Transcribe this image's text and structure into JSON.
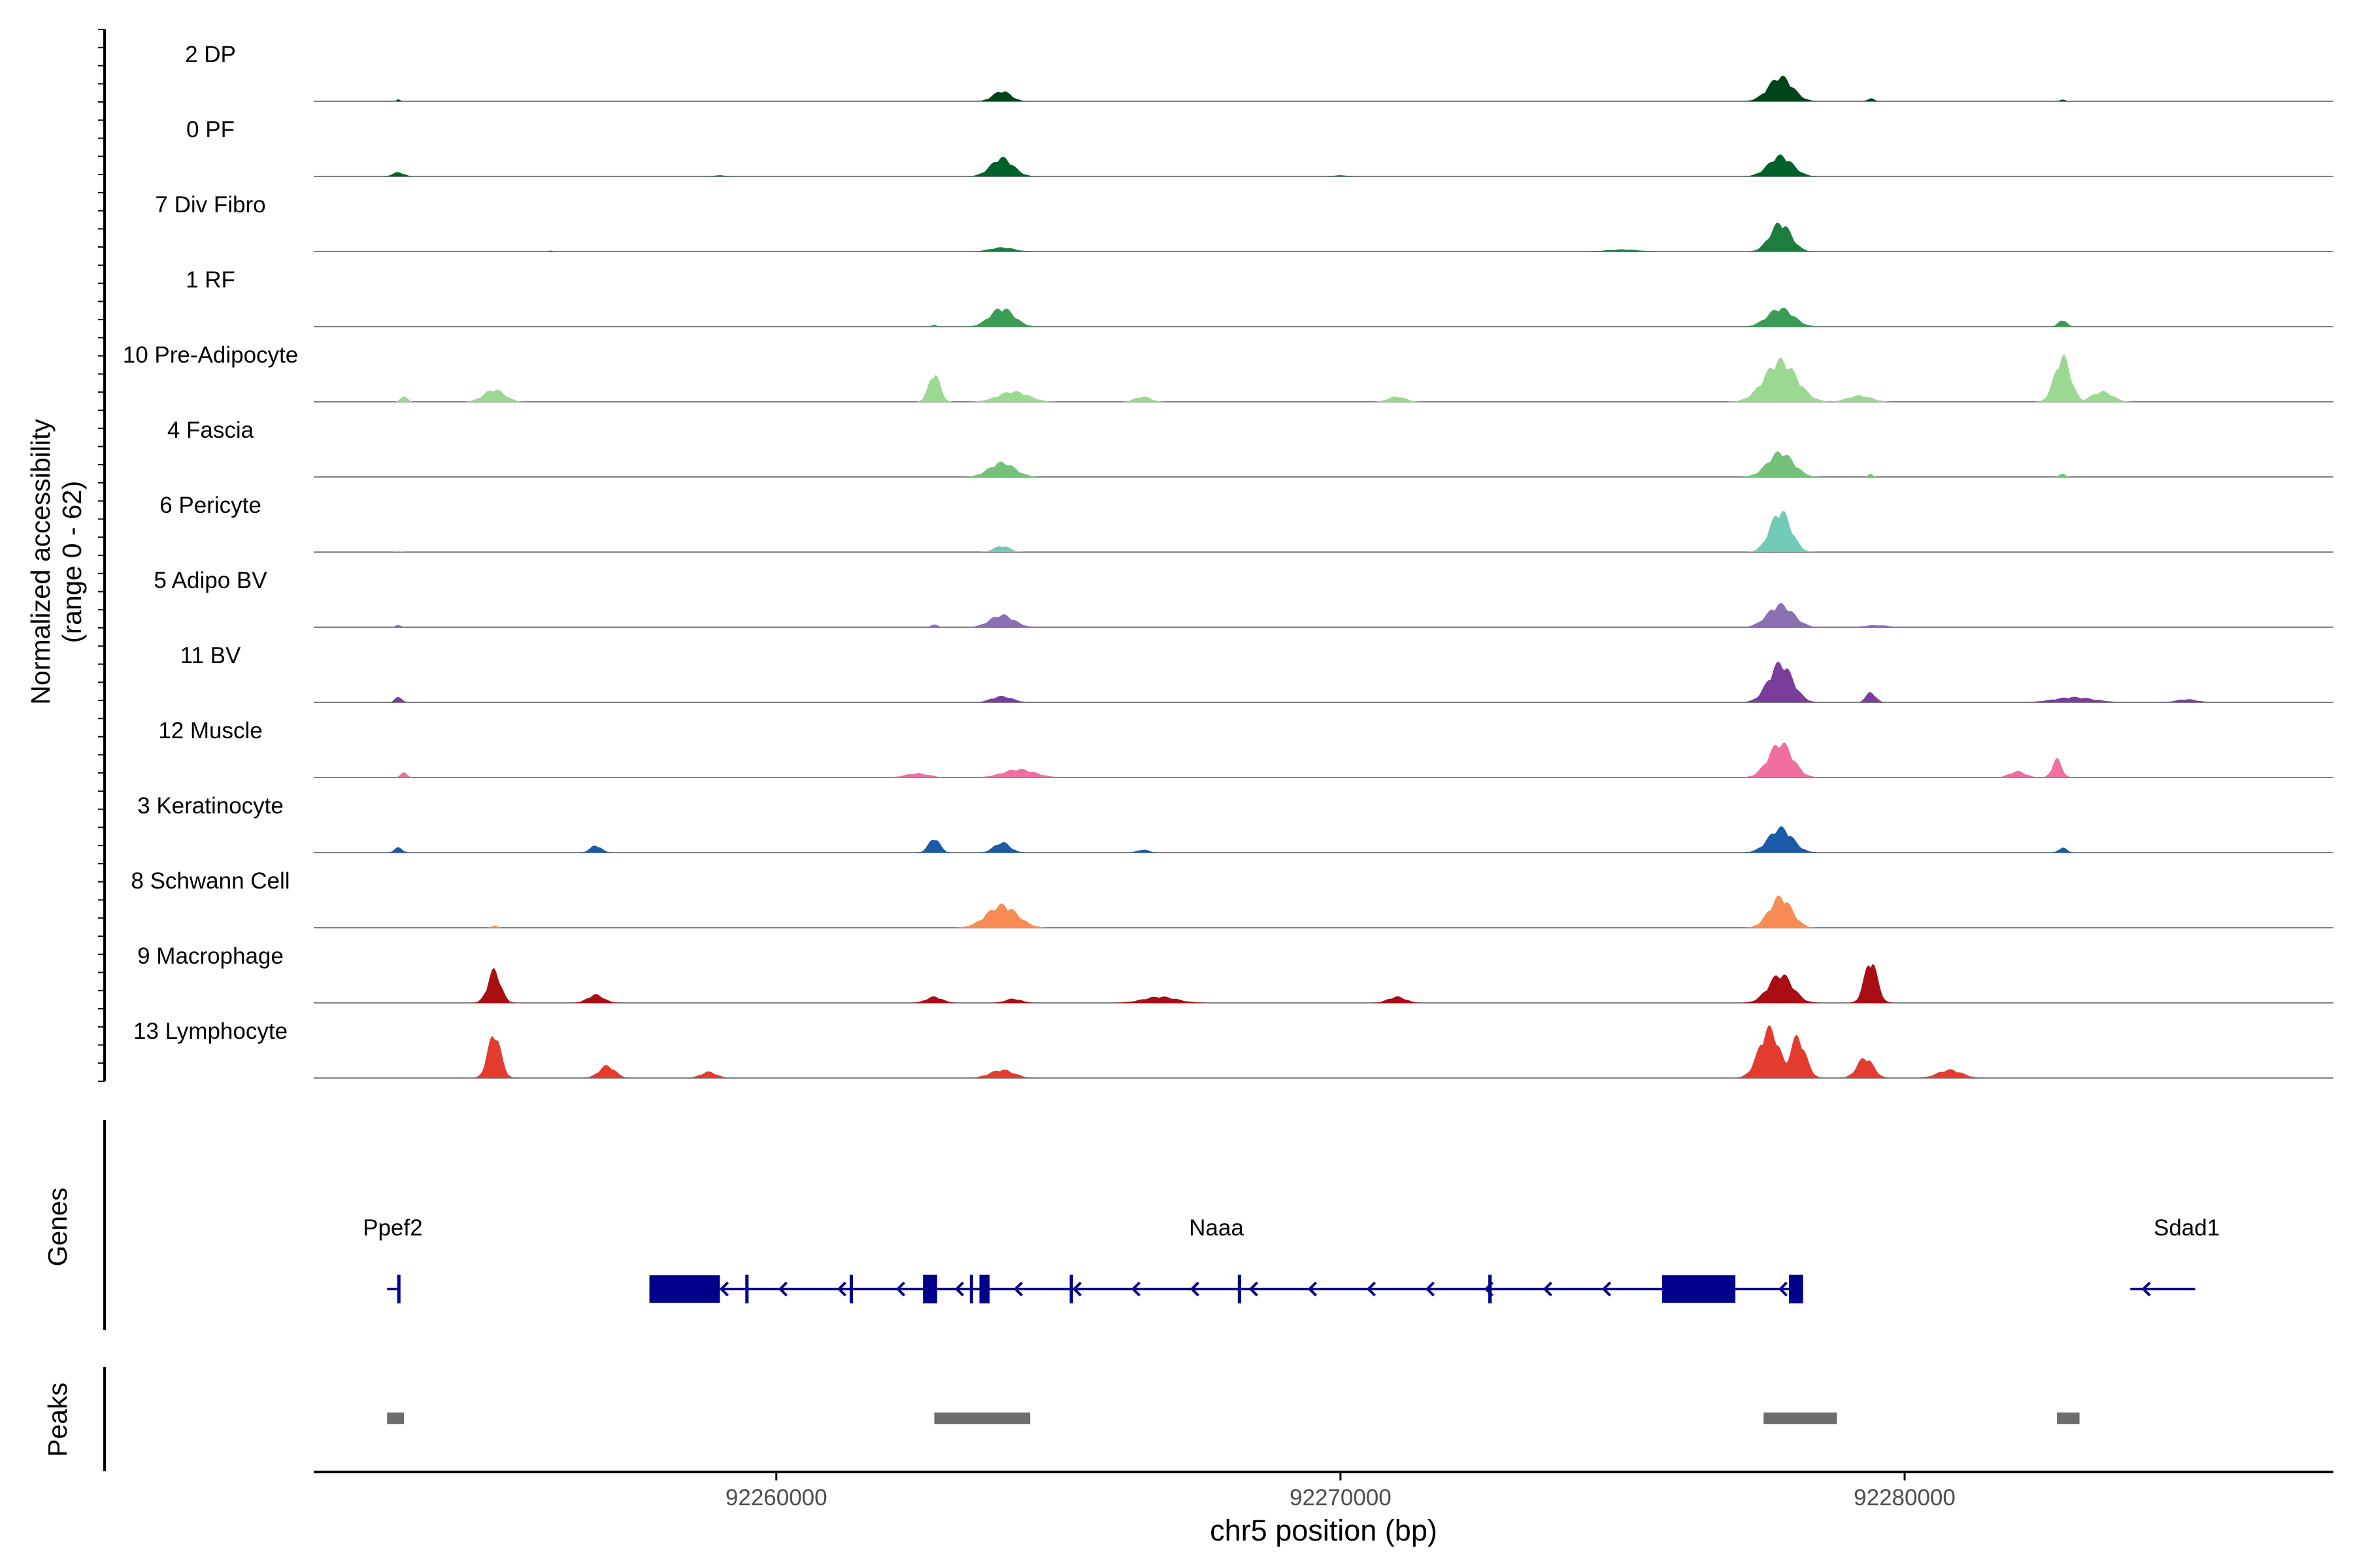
{
  "chart_data": {
    "type": "area",
    "title": "",
    "xlabel": "chr5 position (bp)",
    "ylabel": "Normalized accessibility\n(range 0 - 62)",
    "ylabel_lines": [
      "Normalized accessibility",
      "(range 0 - 62)"
    ],
    "xlim": [
      92251800,
      92287600
    ],
    "ylim": [
      0,
      62
    ],
    "x_ticks": [
      {
        "value": 92260000,
        "label": "92260000"
      },
      {
        "value": 92270000,
        "label": "92270000"
      },
      {
        "value": 92280000,
        "label": "92280000"
      }
    ],
    "colors": {
      "gene": "#00008b",
      "peak": "#6e6e6e",
      "baseline": "#7f7f7f",
      "axis": "#000000"
    },
    "tracks": [
      {
        "name": "2 DP",
        "color": "#00441b",
        "peaks": [
          [
            92253300,
            2,
            40
          ],
          [
            92264000,
            10,
            220
          ],
          [
            92277800,
            24,
            300
          ],
          [
            92279400,
            3,
            80
          ],
          [
            92282800,
            2,
            60
          ]
        ]
      },
      {
        "name": "0 PF",
        "color": "#00622a",
        "peaks": [
          [
            92253300,
            4,
            140
          ],
          [
            92264000,
            18,
            280
          ],
          [
            92277800,
            20,
            300
          ],
          [
            92259000,
            1,
            200
          ],
          [
            92270000,
            1,
            200
          ]
        ]
      },
      {
        "name": "7 Div Fibro",
        "color": "#1b7d3e",
        "peaks": [
          [
            92264000,
            4,
            300
          ],
          [
            92277800,
            28,
            260
          ],
          [
            92275000,
            2,
            400
          ],
          [
            92256000,
            1,
            60
          ]
        ]
      },
      {
        "name": "1 RF",
        "color": "#3a9c55",
        "peaks": [
          [
            92262800,
            2,
            60
          ],
          [
            92264000,
            18,
            300
          ],
          [
            92277800,
            18,
            320
          ],
          [
            92282800,
            7,
            100
          ]
        ]
      },
      {
        "name": "10 Pre-Adipocyte",
        "color": "#9bd892",
        "peaks": [
          [
            92255000,
            12,
            260
          ],
          [
            92262800,
            28,
            140
          ],
          [
            92264200,
            10,
            380
          ],
          [
            92266500,
            5,
            200
          ],
          [
            92271000,
            5,
            220
          ],
          [
            92277800,
            40,
            400
          ],
          [
            92279200,
            6,
            300
          ],
          [
            92282800,
            44,
            200
          ],
          [
            92283500,
            10,
            260
          ],
          [
            92253400,
            6,
            80
          ]
        ]
      },
      {
        "name": "4 Fascia",
        "color": "#74c17a",
        "peaks": [
          [
            92264000,
            14,
            320
          ],
          [
            92277800,
            24,
            320
          ],
          [
            92279400,
            3,
            60
          ],
          [
            92282800,
            3,
            80
          ]
        ]
      },
      {
        "name": "6 Pericyte",
        "color": "#72cbb4",
        "peaks": [
          [
            92264000,
            6,
            200
          ],
          [
            92277800,
            40,
            260
          ],
          [
            92253300,
            1,
            80
          ]
        ]
      },
      {
        "name": "5 Adipo BV",
        "color": "#8a6fb3",
        "peaks": [
          [
            92264000,
            12,
            300
          ],
          [
            92277800,
            22,
            320
          ],
          [
            92253300,
            2,
            80
          ],
          [
            92262800,
            3,
            80
          ],
          [
            92279500,
            2,
            300
          ]
        ]
      },
      {
        "name": "11 BV",
        "color": "#7a3d9c",
        "peaks": [
          [
            92253300,
            6,
            80
          ],
          [
            92264000,
            6,
            260
          ],
          [
            92277800,
            38,
            300
          ],
          [
            92279400,
            10,
            120
          ],
          [
            92283000,
            5,
            500
          ],
          [
            92285000,
            3,
            260
          ]
        ]
      },
      {
        "name": "12 Muscle",
        "color": "#f06ea0",
        "peaks": [
          [
            92253400,
            5,
            80
          ],
          [
            92264300,
            8,
            400
          ],
          [
            92262500,
            4,
            300
          ],
          [
            92277800,
            34,
            300
          ],
          [
            92282700,
            18,
            120
          ],
          [
            92282000,
            6,
            200
          ]
        ]
      },
      {
        "name": "3 Keratinocyte",
        "color": "#1a5aa8",
        "peaks": [
          [
            92253300,
            5,
            100
          ],
          [
            92256800,
            7,
            140
          ],
          [
            92262800,
            14,
            140
          ],
          [
            92264000,
            10,
            200
          ],
          [
            92277800,
            24,
            300
          ],
          [
            92266500,
            3,
            140
          ],
          [
            92282800,
            5,
            100
          ]
        ]
      },
      {
        "name": "8 Schwann Cell",
        "color": "#f98b55",
        "peaks": [
          [
            92264000,
            22,
            380
          ],
          [
            92277800,
            30,
            280
          ],
          [
            92255000,
            2,
            80
          ]
        ]
      },
      {
        "name": "9 Macrophage",
        "color": "#a80e14",
        "peaks": [
          [
            92255000,
            32,
            160
          ],
          [
            92256800,
            8,
            200
          ],
          [
            92277800,
            28,
            300
          ],
          [
            92279400,
            42,
            160
          ],
          [
            92266800,
            6,
            420
          ],
          [
            92271000,
            6,
            220
          ],
          [
            92262800,
            6,
            200
          ],
          [
            92264200,
            4,
            200
          ]
        ]
      },
      {
        "name": "13 Lymphocyte",
        "color": "#e33b2e",
        "peaks": [
          [
            92255000,
            44,
            160
          ],
          [
            92257000,
            12,
            200
          ],
          [
            92264000,
            8,
            300
          ],
          [
            92277600,
            48,
            260
          ],
          [
            92278100,
            40,
            200
          ],
          [
            92279300,
            20,
            200
          ],
          [
            92280800,
            8,
            300
          ],
          [
            92258800,
            6,
            200
          ]
        ]
      }
    ],
    "genes": [
      {
        "name": "Ppef2",
        "start": 92253100,
        "end": 92253330,
        "strand": "-",
        "exons": [
          [
            92253280,
            92253330
          ]
        ]
      },
      {
        "name": "Naaa",
        "start": 92257750,
        "end": 92278200,
        "strand": "-",
        "exons": [
          [
            92257750,
            92259000
          ],
          [
            92259450,
            92259500
          ],
          [
            92261300,
            92261330
          ],
          [
            92262600,
            92262850
          ],
          [
            92263430,
            92263480
          ],
          [
            92263600,
            92263780
          ],
          [
            92265200,
            92265260
          ],
          [
            92268180,
            92268240
          ],
          [
            92272620,
            92272680
          ],
          [
            92275700,
            92277000
          ],
          [
            92277950,
            92278200
          ]
        ]
      },
      {
        "name": "Sdad1",
        "start": 92284000,
        "end": 92285150,
        "strand": "-",
        "exons": []
      }
    ],
    "gene_label_x": {
      "Ppef2": 92253200,
      "Naaa": 92267800,
      "Sdad1": 92285000
    },
    "peak_regions": [
      [
        92253100,
        92253400
      ],
      [
        92262800,
        92264500
      ],
      [
        92277500,
        92278800
      ],
      [
        92282700,
        92283100
      ]
    ],
    "panel_labels": {
      "genes": "Genes",
      "peaks": "Peaks"
    }
  }
}
